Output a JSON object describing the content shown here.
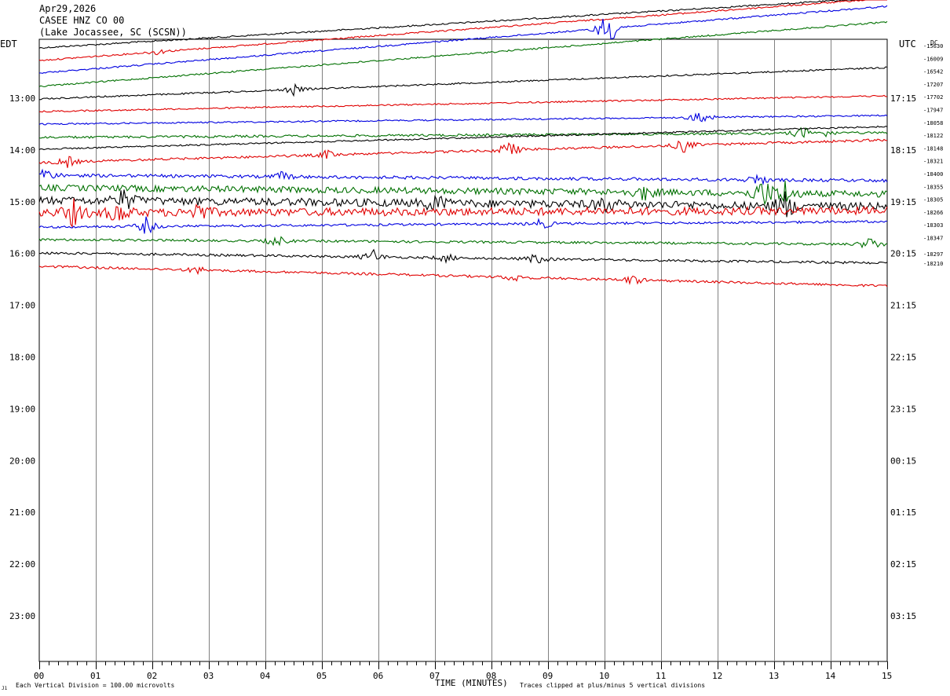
{
  "header": {
    "date": "Apr29,2026",
    "channel": "CASEE HNZ CO 00",
    "location": "(Lake Jocassee, SC (SCSN))"
  },
  "labels": {
    "left_zone": "EDT",
    "right_zone": "UTC",
    "dc": "DC",
    "xlabel": "TIME (MINUTES)",
    "scale_note": "Each Vertical Division =  100.00 microvolts",
    "clip_note": "Traces clipped at plus/minus 5 vertical divisions",
    "corner_mark": "J1"
  },
  "colors": {
    "trace_cycle": [
      "#000000",
      "#e00000",
      "#0000e0",
      "#007000"
    ],
    "grid": "#808080"
  },
  "chart_data": {
    "type": "line",
    "title": "CASEE HNZ CO 00",
    "xlabel": "TIME (MINUTES)",
    "xlim": [
      0,
      15
    ],
    "x_ticks": [
      "00",
      "01",
      "02",
      "03",
      "04",
      "05",
      "06",
      "07",
      "08",
      "09",
      "10",
      "11",
      "12",
      "13",
      "14",
      "15"
    ],
    "left_hour_labels": [
      "13:00",
      "14:00",
      "15:00",
      "16:00",
      "17:00",
      "18:00",
      "19:00",
      "20:00",
      "21:00",
      "22:00",
      "23:00"
    ],
    "right_hour_labels": [
      "17:15",
      "18:15",
      "19:15",
      "20:15",
      "21:15",
      "22:15",
      "23:15",
      "00:15",
      "01:15",
      "02:15",
      "03:15"
    ],
    "dc_values": [
      "-15630",
      "-16009",
      "-16542",
      "-17207",
      "-17702",
      "-17947",
      "-18058",
      "-18122",
      "-18148",
      "-18321",
      "-18400",
      "-18355",
      "-18305",
      "-18266",
      "-18303",
      "-18347",
      "-18297",
      "-18210"
    ],
    "traces": [
      {
        "color": "black",
        "start_y": 61,
        "end_y": -3,
        "noise": 1,
        "events": []
      },
      {
        "color": "red",
        "start_y": 77,
        "end_y": -2,
        "noise": 1,
        "events": [
          {
            "minute": 2.1,
            "amp": 4
          }
        ]
      },
      {
        "color": "blue",
        "start_y": 93,
        "end_y": 8,
        "noise": 1,
        "events": [
          {
            "minute": 10.1,
            "amp": 18
          },
          {
            "minute": 10.0,
            "amp": 10
          }
        ]
      },
      {
        "color": "green",
        "start_y": 110,
        "end_y": 28,
        "noise": 1,
        "events": []
      },
      {
        "color": "black",
        "start_y": 126,
        "end_y": 86,
        "noise": 1,
        "events": [
          {
            "minute": 4.5,
            "amp": 7
          }
        ]
      },
      {
        "color": "red",
        "start_y": 142,
        "end_y": 122,
        "noise": 1,
        "events": []
      },
      {
        "color": "blue",
        "start_y": 158,
        "end_y": 147,
        "noise": 1,
        "events": [
          {
            "minute": 11.7,
            "amp": 12
          }
        ]
      },
      {
        "color": "green",
        "start_y": 175,
        "end_y": 169,
        "noise": 1.5,
        "events": [
          {
            "minute": 13.5,
            "amp": 9
          },
          {
            "minute": 13.9,
            "amp": 4
          }
        ]
      },
      {
        "color": "black",
        "start_y": 190,
        "end_y": 161,
        "noise": 1,
        "events": []
      },
      {
        "color": "red",
        "start_y": 207,
        "end_y": 178,
        "noise": 1.5,
        "events": [
          {
            "minute": 0.5,
            "amp": 8
          },
          {
            "minute": 8.3,
            "amp": 14
          },
          {
            "minute": 5.1,
            "amp": 6
          },
          {
            "minute": 11.4,
            "amp": 10
          }
        ]
      },
      {
        "color": "blue",
        "start_y": 223,
        "end_y": 230,
        "noise": 2,
        "events": [
          {
            "minute": 0.1,
            "amp": 10
          },
          {
            "minute": 4.3,
            "amp": 6
          },
          {
            "minute": 12.7,
            "amp": 8
          }
        ]
      },
      {
        "color": "green",
        "start_y": 239,
        "end_y": 247,
        "noise": 4,
        "events": [
          {
            "minute": 12.8,
            "amp": 20
          },
          {
            "minute": 13.2,
            "amp": 16
          },
          {
            "minute": 10.7,
            "amp": 10
          }
        ]
      },
      {
        "color": "black",
        "start_y": 255,
        "end_y": 263,
        "noise": 5,
        "events": [
          {
            "minute": 1.5,
            "amp": 14
          },
          {
            "minute": 7.0,
            "amp": 12
          },
          {
            "minute": 13.2,
            "amp": 18
          },
          {
            "minute": 10.0,
            "amp": 10
          }
        ]
      },
      {
        "color": "red",
        "start_y": 271,
        "end_y": 268,
        "noise": 5,
        "events": [
          {
            "minute": 0.6,
            "amp": 16
          },
          {
            "minute": 1.4,
            "amp": 14
          },
          {
            "minute": 2.8,
            "amp": 12
          }
        ]
      },
      {
        "color": "blue",
        "start_y": 289,
        "end_y": 282,
        "noise": 1.5,
        "events": [
          {
            "minute": 1.9,
            "amp": 12
          },
          {
            "minute": 8.9,
            "amp": 8
          }
        ]
      },
      {
        "color": "green",
        "start_y": 305,
        "end_y": 311,
        "noise": 1.5,
        "events": [
          {
            "minute": 4.2,
            "amp": 8
          },
          {
            "minute": 14.7,
            "amp": 10
          }
        ]
      },
      {
        "color": "black",
        "start_y": 322,
        "end_y": 335,
        "noise": 1.5,
        "events": [
          {
            "minute": 5.9,
            "amp": 10
          },
          {
            "minute": 7.2,
            "amp": 6
          },
          {
            "minute": 8.8,
            "amp": 8
          }
        ]
      },
      {
        "color": "red",
        "start_y": 339,
        "end_y": 364,
        "noise": 1.5,
        "events": [
          {
            "minute": 2.8,
            "amp": 5
          },
          {
            "minute": 8.4,
            "amp": 6
          },
          {
            "minute": 10.5,
            "amp": 7
          }
        ]
      }
    ]
  }
}
